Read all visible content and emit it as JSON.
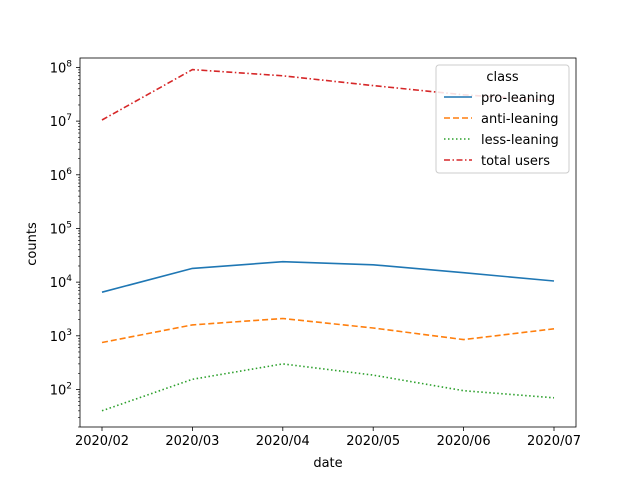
{
  "chart_data": {
    "type": "line",
    "title": "",
    "xlabel": "date",
    "ylabel": "counts",
    "yscale": "log",
    "ylim": [
      20,
      150000000
    ],
    "y_tick_labels": [
      "10^2",
      "10^3",
      "10^4",
      "10^5",
      "10^6",
      "10^7",
      "10^8"
    ],
    "categories": [
      "2020/02",
      "2020/03",
      "2020/04",
      "2020/05",
      "2020/06",
      "2020/07"
    ],
    "grid": false,
    "legend": {
      "title": "class",
      "placement": "top-right"
    },
    "series": [
      {
        "name": "pro-leaning",
        "color": "#1f77b4",
        "linestyle": "solid",
        "values": [
          6500,
          18000,
          24000,
          21000,
          15000,
          10500
        ]
      },
      {
        "name": "anti-leaning",
        "color": "#ff7f0e",
        "linestyle": "dashed",
        "values": [
          750,
          1600,
          2100,
          1400,
          850,
          1350
        ]
      },
      {
        "name": "less-leaning",
        "color": "#2ca02c",
        "linestyle": "dotted",
        "values": [
          40,
          155,
          300,
          185,
          95,
          70
        ]
      },
      {
        "name": "total users",
        "color": "#d62728",
        "linestyle": "dashdot",
        "values": [
          10500000,
          91000000,
          70000000,
          46000000,
          31000000,
          24000000
        ]
      }
    ]
  }
}
